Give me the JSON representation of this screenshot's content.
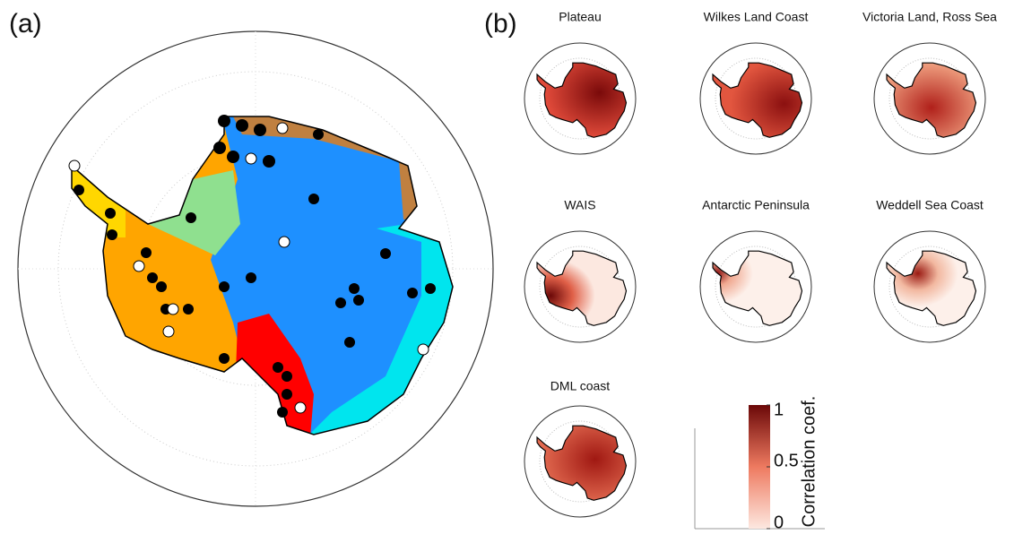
{
  "panel_a": {
    "label": "(a)"
  },
  "panel_b": {
    "label": "(b)",
    "maps": [
      {
        "title": "Plateau"
      },
      {
        "title": "Wilkes Land Coast"
      },
      {
        "title": "Victoria Land, Ross Sea"
      },
      {
        "title": "WAIS"
      },
      {
        "title": "Antarctic Peninsula"
      },
      {
        "title": "Weddell Sea Coast"
      },
      {
        "title": "DML coast"
      }
    ],
    "colorbar": {
      "label": "Correlation coef.",
      "lim": [
        0,
        1
      ],
      "ticks": [
        0,
        0.5,
        1
      ]
    }
  }
}
